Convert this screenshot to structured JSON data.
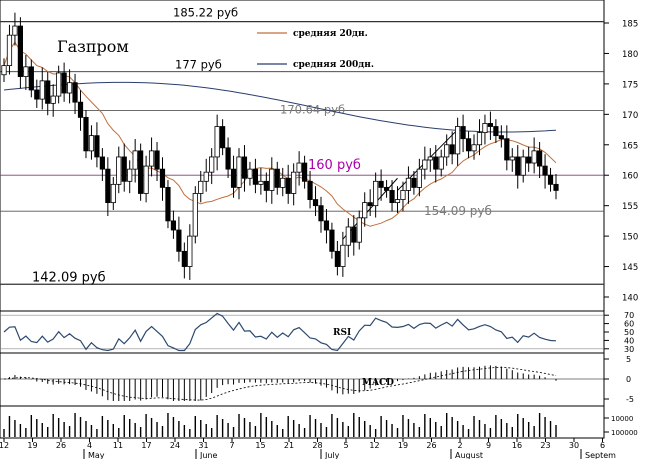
{
  "chart_data": {
    "type": "candlestick",
    "title": "Газпром",
    "legend": [
      {
        "label": "средняя 20дн.",
        "color": "#c0703c"
      },
      {
        "label": "средняя 200дн.",
        "color": "#2c3e6e"
      }
    ],
    "price_axis": {
      "ylim": [
        138,
        188
      ],
      "ticks": [
        140,
        145,
        150,
        155,
        160,
        165,
        170,
        175,
        180,
        185
      ]
    },
    "levels": [
      {
        "value": 185.22,
        "label": "185.22 руб",
        "color": "#000000"
      },
      {
        "value": 177,
        "label": "177 руб",
        "color": "#000000"
      },
      {
        "value": 170.64,
        "label": "170.64 руб",
        "color": "#7a7a7a"
      },
      {
        "value": 160,
        "label": "160 руб",
        "color": "#aa00aa"
      },
      {
        "value": 154.09,
        "label": "154.09 руб",
        "color": "#7a7a7a"
      },
      {
        "value": 142.09,
        "label": "142.09 руб",
        "color": "#000000"
      }
    ],
    "x_ticks": [
      "12",
      "19",
      "26",
      "4",
      "11",
      "17",
      "24",
      "31",
      "7",
      "15",
      "21",
      "28",
      "5",
      "12",
      "19",
      "26",
      "2",
      "9",
      "16",
      "23",
      "30",
      "6"
    ],
    "months": [
      "May",
      "June",
      "July",
      "August",
      "Septem"
    ],
    "close": [
      178.0,
      183.0,
      184.5,
      176.2,
      177.8,
      174.0,
      172.5,
      175.5,
      171.8,
      173.0,
      176.8,
      173.5,
      175.2,
      172.0,
      169.5,
      164.0,
      166.5,
      163.0,
      161.0,
      155.5,
      158.5,
      163.0,
      159.0,
      161.0,
      164.0,
      157.0,
      161.5,
      164.0,
      161.0,
      158.0,
      152.5,
      151.0,
      147.5,
      145.0,
      150.0,
      157.0,
      159.0,
      160.5,
      163.0,
      168.0,
      164.5,
      161.0,
      158.0,
      163.0,
      159.5,
      161.0,
      158.5,
      159.0,
      157.5,
      161.0,
      158.0,
      159.5,
      157.0,
      160.5,
      162.0,
      159.0,
      156.0,
      155.0,
      152.5,
      151.0,
      147.5,
      145.0,
      148.5,
      151.5,
      149.0,
      153.0,
      155.5,
      155.0,
      159.0,
      158.0,
      157.5,
      155.5,
      156.0,
      157.5,
      159.5,
      158.0,
      161.0,
      162.5,
      163.0,
      161.0,
      163.0,
      165.0,
      163.5,
      168.0,
      166.0,
      164.0,
      165.0,
      167.0,
      168.5,
      168.0,
      166.5,
      166.0,
      162.5,
      163.0,
      160.0,
      163.0,
      162.0,
      164.0,
      161.5,
      160.0,
      158.5,
      157.5
    ],
    "rsi": {
      "label": "RSI",
      "ticks": [
        30,
        40,
        50,
        60,
        70
      ],
      "ylim": [
        25,
        75
      ]
    },
    "macd": {
      "label": "MACD",
      "ticks": [
        -5,
        0,
        5
      ],
      "ylim": [
        -6,
        6
      ]
    },
    "volume": {
      "ticks": [
        "10000",
        "100000"
      ]
    }
  }
}
